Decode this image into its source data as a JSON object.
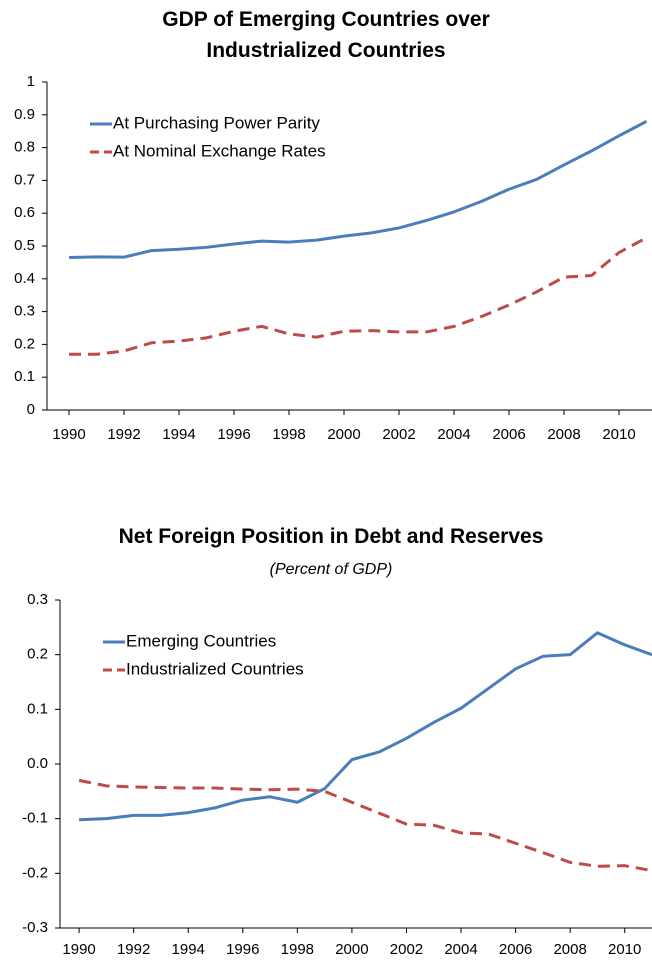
{
  "chart_data": [
    {
      "type": "line",
      "title": "GDP of Emerging Countries over Industrialized Countries",
      "x": [
        1990,
        1991,
        1992,
        1993,
        1994,
        1995,
        1996,
        1997,
        1998,
        1999,
        2000,
        2001,
        2002,
        2003,
        2004,
        2005,
        2006,
        2007,
        2008,
        2009,
        2010,
        2011
      ],
      "series": [
        {
          "name": "At Purchasing Power Parity",
          "color": "#4a7ebb",
          "line_style": "solid",
          "values": [
            0.465,
            0.467,
            0.466,
            0.486,
            0.49,
            0.496,
            0.506,
            0.515,
            0.512,
            0.518,
            0.53,
            0.54,
            0.555,
            0.578,
            0.604,
            0.636,
            0.673,
            0.703,
            0.747,
            0.79,
            0.836,
            0.88
          ]
        },
        {
          "name": "At Nominal Exchange Rates",
          "color": "#be4b48",
          "line_style": "dashed",
          "values": [
            0.17,
            0.17,
            0.18,
            0.205,
            0.21,
            0.22,
            0.24,
            0.255,
            0.232,
            0.222,
            0.24,
            0.242,
            0.238,
            0.238,
            0.255,
            0.285,
            0.32,
            0.36,
            0.405,
            0.41,
            0.48,
            0.525
          ]
        }
      ],
      "xlim": [
        1989.2,
        2011.2
      ],
      "xticks": [
        1990,
        1992,
        1994,
        1996,
        1998,
        2000,
        2002,
        2004,
        2006,
        2008,
        2010
      ],
      "ylim": [
        0,
        1
      ],
      "yticks": [
        0,
        0.1,
        0.2,
        0.3,
        0.4,
        0.5,
        0.6,
        0.7,
        0.8,
        0.9,
        1
      ],
      "grid": false,
      "legend": "upper left"
    },
    {
      "type": "line",
      "title": "Net Foreign Position in Debt and Reserves",
      "subtitle": "(Percent of GDP)",
      "x": [
        1990,
        1991,
        1992,
        1993,
        1994,
        1995,
        1996,
        1997,
        1998,
        1999,
        2000,
        2001,
        2002,
        2003,
        2004,
        2005,
        2006,
        2007,
        2008,
        2009,
        2010,
        2011
      ],
      "series": [
        {
          "name": "Emerging Countries",
          "color": "#4a7ebb",
          "line_style": "solid",
          "values": [
            -0.102,
            -0.1,
            -0.094,
            -0.094,
            -0.089,
            -0.08,
            -0.066,
            -0.06,
            -0.07,
            -0.045,
            0.008,
            0.022,
            0.047,
            0.076,
            0.102,
            0.138,
            0.174,
            0.197,
            0.2,
            0.24,
            0.218,
            0.2
          ]
        },
        {
          "name": "Industrialized Countries",
          "color": "#be4b48",
          "line_style": "dashed",
          "values": [
            -0.03,
            -0.04,
            -0.042,
            -0.043,
            -0.044,
            -0.044,
            -0.046,
            -0.047,
            -0.046,
            -0.05,
            -0.07,
            -0.09,
            -0.11,
            -0.112,
            -0.126,
            -0.128,
            -0.145,
            -0.162,
            -0.18,
            -0.187,
            -0.186,
            -0.195
          ]
        }
      ],
      "xlim": [
        1989.3,
        2011.0
      ],
      "xticks": [
        1990,
        1992,
        1994,
        1996,
        1998,
        2000,
        2002,
        2004,
        2006,
        2008,
        2010
      ],
      "ylim": [
        -0.3,
        0.3
      ],
      "yticks": [
        -0.3,
        -0.2,
        -0.1,
        {
          "value": 0,
          "label": "0.0"
        },
        0.1,
        0.2,
        0.3
      ],
      "grid": false,
      "legend": "upper left"
    }
  ]
}
